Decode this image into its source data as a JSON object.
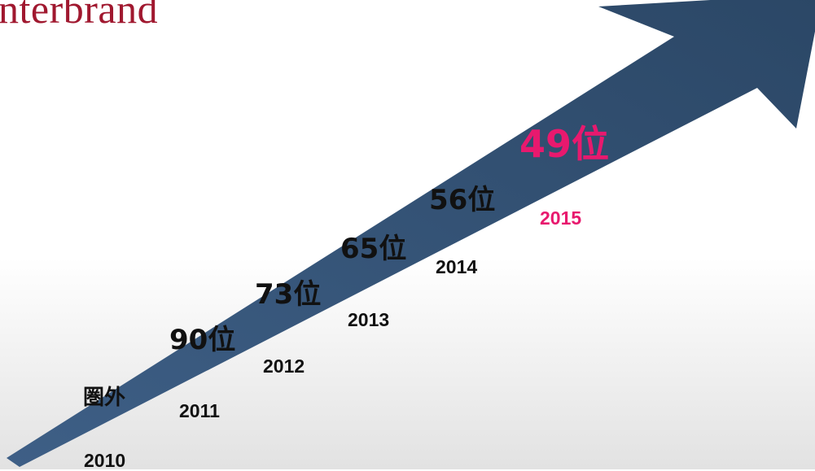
{
  "logo": "nterbrand",
  "ranking": [
    {
      "rank": "圏外",
      "year": 2010
    },
    {
      "rank": "90位",
      "year": 2011
    },
    {
      "rank": "73位",
      "year": 2012
    },
    {
      "rank": "65位",
      "year": 2013
    },
    {
      "rank": "56位",
      "year": 2014
    },
    {
      "rank": "49位",
      "year": 2015
    }
  ]
}
